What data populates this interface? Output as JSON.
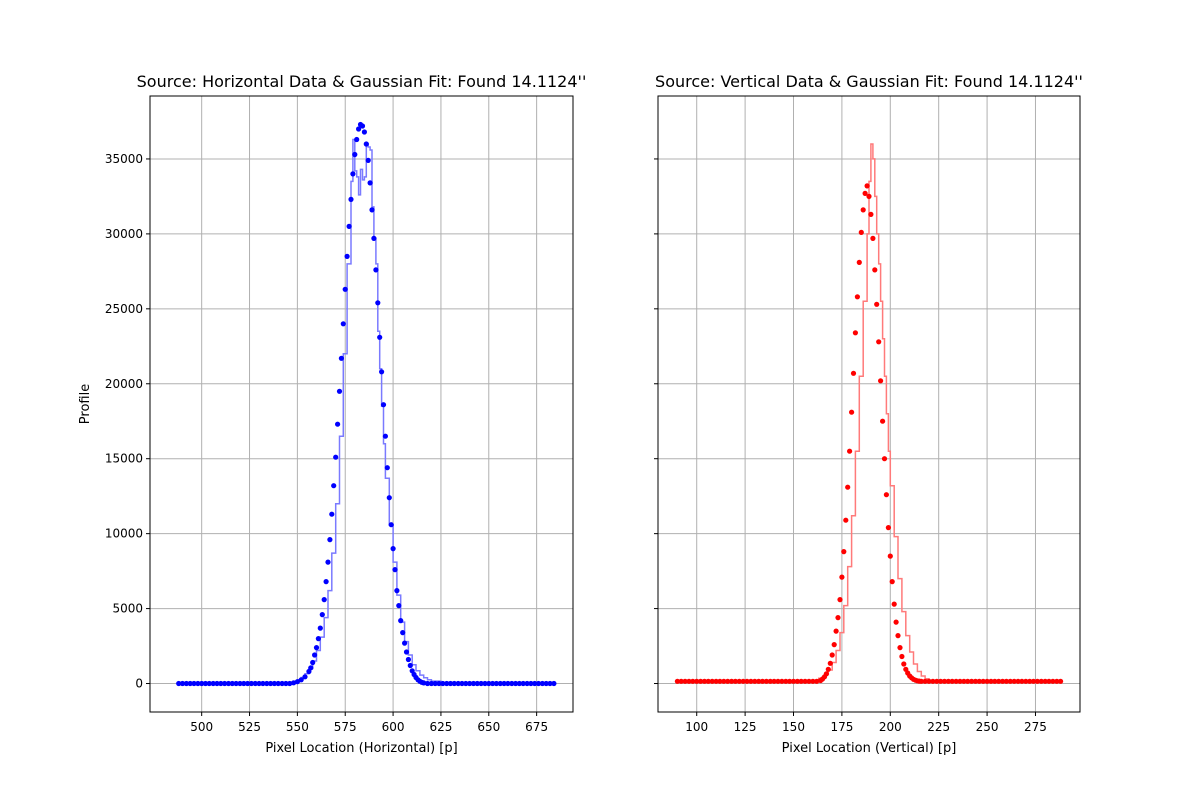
{
  "chart_data": [
    {
      "type": "scatter",
      "title": "Source: Horizontal Data & Gaussian Fit: Found 14.1124''",
      "xlabel": "Pixel Location (Horizontal) [p]",
      "ylabel": "Profile",
      "xlim": [
        473,
        694
      ],
      "ylim": [
        -1900,
        39200
      ],
      "xticks": [
        500,
        525,
        550,
        575,
        600,
        625,
        650,
        675
      ],
      "yticks": [
        0,
        5000,
        10000,
        15000,
        20000,
        25000,
        30000,
        35000
      ],
      "grid": true,
      "colors": {
        "points": "#0000ff",
        "line": "#7a7aff"
      },
      "series": [
        {
          "kind": "points",
          "x": [
            488,
            490,
            492,
            494,
            496,
            498,
            500,
            502,
            504,
            506,
            508,
            510,
            512,
            514,
            516,
            518,
            520,
            522,
            524,
            526,
            528,
            530,
            532,
            534,
            536,
            538,
            540,
            542,
            544,
            546,
            548,
            550,
            552,
            554,
            556,
            557,
            558,
            559,
            560,
            561,
            562,
            563,
            564,
            565,
            566,
            567,
            568,
            569,
            570,
            571,
            572,
            573,
            574,
            575,
            576,
            577,
            578,
            579,
            580,
            581,
            582,
            583,
            584,
            585,
            586,
            587,
            588,
            589,
            590,
            591,
            592,
            593,
            594,
            595,
            596,
            597,
            598,
            599,
            600,
            601,
            602,
            603,
            604,
            605,
            606,
            607,
            608,
            609,
            610,
            611,
            612,
            613,
            614,
            615,
            616,
            618,
            620,
            622,
            624,
            626,
            628,
            630,
            632,
            634,
            636,
            638,
            640,
            642,
            644,
            646,
            648,
            650,
            652,
            654,
            656,
            658,
            660,
            662,
            664,
            666,
            668,
            670,
            672,
            674,
            676,
            678,
            680,
            682,
            684
          ],
          "y": [
            0,
            0,
            0,
            0,
            0,
            0,
            0,
            0,
            0,
            0,
            0,
            0,
            0,
            0,
            0,
            0,
            0,
            0,
            0,
            0,
            0,
            0,
            0,
            0,
            0,
            0,
            0,
            0,
            0,
            0,
            50,
            120,
            250,
            450,
            800,
            1050,
            1400,
            1900,
            2400,
            3000,
            3700,
            4600,
            5600,
            6800,
            8100,
            9600,
            11300,
            13200,
            15100,
            17300,
            19500,
            21700,
            24000,
            26300,
            28500,
            30500,
            32300,
            34000,
            35300,
            36300,
            37000,
            37300,
            37200,
            36800,
            36000,
            34900,
            33400,
            31600,
            29700,
            27600,
            25400,
            23100,
            20800,
            18600,
            16500,
            14400,
            12400,
            10600,
            9000,
            7600,
            6200,
            5200,
            4200,
            3400,
            2700,
            2100,
            1600,
            1200,
            850,
            600,
            400,
            250,
            150,
            80,
            40,
            0,
            0,
            0,
            0,
            0,
            0,
            0,
            0,
            0,
            0,
            0,
            0,
            0,
            0,
            0,
            0,
            0,
            0,
            0,
            0,
            0,
            0,
            0,
            0,
            0,
            0,
            0,
            0,
            0,
            0,
            0,
            0,
            0,
            0
          ]
        },
        {
          "kind": "step",
          "x": [
            488,
            540,
            545,
            548,
            550,
            552,
            554,
            556,
            558,
            560,
            562,
            564,
            566,
            568,
            570,
            572,
            574,
            576,
            578,
            579,
            580,
            581,
            582,
            583,
            584,
            585,
            586,
            587,
            588,
            589,
            590,
            591,
            592,
            593,
            594,
            595,
            596,
            598,
            600,
            602,
            604,
            606,
            608,
            610,
            612,
            614,
            616,
            618,
            620,
            625,
            630,
            684
          ],
          "y": [
            0,
            30,
            80,
            150,
            250,
            400,
            650,
            1000,
            1500,
            2200,
            3100,
            4400,
            6200,
            8700,
            12000,
            16500,
            22000,
            28000,
            33500,
            36300,
            34200,
            33800,
            32600,
            34300,
            33600,
            33800,
            36000,
            35800,
            35600,
            31800,
            29700,
            28000,
            23500,
            21000,
            18500,
            16000,
            13700,
            10600,
            8100,
            5900,
            4100,
            2800,
            1900,
            1250,
            850,
            560,
            380,
            250,
            160,
            60,
            10,
            0
          ]
        }
      ]
    },
    {
      "type": "scatter",
      "title": "Source: Vertical Data & Gaussian Fit: Found 14.1124''",
      "xlabel": "Pixel Location (Vertical) [p]",
      "ylabel": "",
      "xlim": [
        80,
        298
      ],
      "ylim": [
        -1900,
        39200
      ],
      "xticks": [
        100,
        125,
        150,
        175,
        200,
        225,
        250,
        275
      ],
      "yticks": [
        0,
        5000,
        10000,
        15000,
        20000,
        25000,
        30000,
        35000
      ],
      "grid": true,
      "colors": {
        "points": "#ff0000",
        "line": "#ff7a7a"
      },
      "series": [
        {
          "kind": "points",
          "x": [
            90,
            92,
            94,
            96,
            98,
            100,
            102,
            104,
            106,
            108,
            110,
            112,
            114,
            116,
            118,
            120,
            122,
            124,
            126,
            128,
            130,
            132,
            134,
            136,
            138,
            140,
            142,
            144,
            146,
            148,
            150,
            152,
            154,
            156,
            158,
            160,
            162,
            164,
            165,
            166,
            167,
            168,
            169,
            170,
            171,
            172,
            173,
            174,
            175,
            176,
            177,
            178,
            179,
            180,
            181,
            182,
            183,
            184,
            185,
            186,
            187,
            188,
            189,
            190,
            191,
            192,
            193,
            194,
            195,
            196,
            197,
            198,
            199,
            200,
            201,
            202,
            203,
            204,
            205,
            206,
            207,
            208,
            209,
            210,
            211,
            212,
            213,
            214,
            215,
            216,
            218,
            220,
            222,
            224,
            226,
            228,
            230,
            232,
            234,
            236,
            238,
            240,
            242,
            244,
            246,
            248,
            250,
            252,
            254,
            256,
            258,
            260,
            262,
            264,
            266,
            268,
            270,
            272,
            274,
            276,
            278,
            280,
            282,
            284,
            286,
            288
          ],
          "y": [
            150,
            150,
            150,
            150,
            150,
            150,
            150,
            150,
            150,
            150,
            150,
            150,
            150,
            150,
            150,
            150,
            150,
            150,
            150,
            150,
            150,
            150,
            150,
            150,
            150,
            150,
            150,
            150,
            150,
            150,
            150,
            150,
            150,
            150,
            150,
            150,
            150,
            200,
            300,
            450,
            650,
            950,
            1350,
            1900,
            2600,
            3500,
            4400,
            5600,
            7100,
            8800,
            10900,
            13100,
            15500,
            18100,
            20700,
            23400,
            25800,
            28100,
            30100,
            31600,
            32700,
            33200,
            32500,
            31300,
            29700,
            27600,
            25300,
            22800,
            20200,
            17500,
            15000,
            12600,
            10400,
            8500,
            6800,
            5300,
            4100,
            3200,
            2400,
            1800,
            1300,
            950,
            700,
            500,
            380,
            280,
            220,
            180,
            160,
            150,
            150,
            150,
            150,
            150,
            150,
            150,
            150,
            150,
            150,
            150,
            150,
            150,
            150,
            150,
            150,
            150,
            150,
            150,
            150,
            150,
            150,
            150,
            150,
            150,
            150,
            150,
            150,
            150,
            150,
            150,
            150,
            150,
            150,
            150,
            150,
            150
          ]
        },
        {
          "kind": "step",
          "x": [
            90,
            160,
            163,
            166,
            168,
            170,
            172,
            174,
            176,
            178,
            180,
            182,
            184,
            186,
            188,
            189,
            190,
            191,
            192,
            193,
            194,
            195,
            196,
            197,
            198,
            199,
            200,
            202,
            204,
            206,
            208,
            210,
            212,
            214,
            216,
            218,
            220,
            224,
            230,
            288
          ],
          "y": [
            150,
            200,
            350,
            600,
            900,
            1400,
            2200,
            3400,
            5200,
            7800,
            11200,
            15500,
            20500,
            25500,
            30000,
            33500,
            36000,
            35000,
            32500,
            30000,
            28000,
            25500,
            23000,
            20500,
            18000,
            15500,
            13200,
            9800,
            7000,
            4800,
            3200,
            2100,
            1300,
            800,
            500,
            320,
            220,
            180,
            150,
            150
          ]
        }
      ]
    }
  ]
}
